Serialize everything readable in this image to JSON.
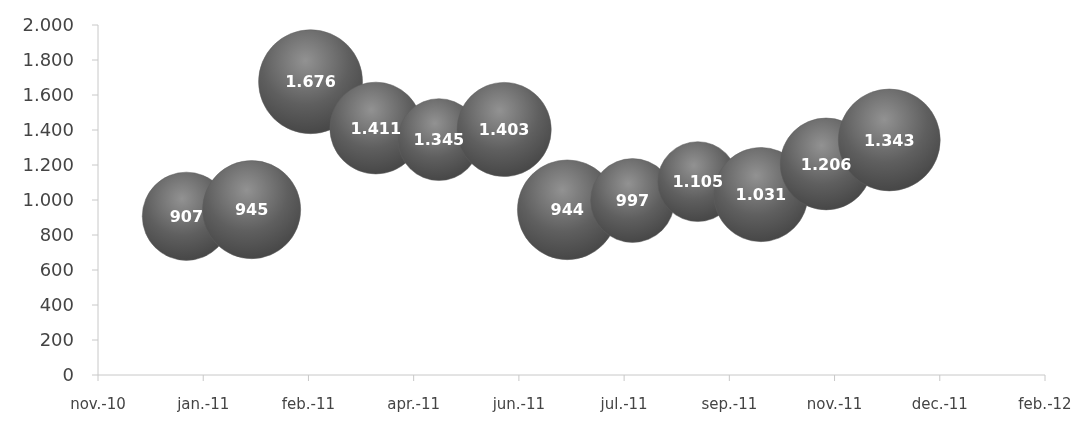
{
  "chart_data": {
    "type": "bubble",
    "x": [
      "2011-01-01",
      "2011-02-01",
      "2011-03-01",
      "2011-04-01",
      "2011-05-01",
      "2011-06-01",
      "2011-07-01",
      "2011-08-01",
      "2011-09-01",
      "2011-10-01",
      "2011-11-01",
      "2011-12-01"
    ],
    "series": [
      {
        "color": "#5f5f5f",
        "values": [
          907,
          945,
          1676,
          1411,
          1345,
          1403,
          944,
          997,
          1105,
          1031,
          1206,
          1343
        ],
        "sizes": [
          0.72,
          0.89,
          1,
          0.78,
          0.62,
          0.82,
          0.92,
          0.65,
          0.59,
          0.82,
          0.78,
          0.96
        ],
        "value_labels": [
          "907",
          "945",
          "1.676",
          "1.411",
          "1.345",
          "1.403",
          "944",
          "997",
          "1.105",
          "1.031",
          "1.206",
          "1.343"
        ]
      }
    ],
    "xlim": [
      "2010-11-20",
      "2012-02-13"
    ],
    "xticks": [
      {
        "value": "2010-11-20",
        "label": "nov.-10"
      },
      {
        "value": "2011-01-09",
        "label": "jan.-11"
      },
      {
        "value": "2011-02-28",
        "label": "feb.-11"
      },
      {
        "value": "2011-04-19",
        "label": "apr.-11"
      },
      {
        "value": "2011-06-08",
        "label": "jun.-11"
      },
      {
        "value": "2011-07-28",
        "label": "jul.-11"
      },
      {
        "value": "2011-09-16",
        "label": "sep.-11"
      },
      {
        "value": "2011-11-05",
        "label": "nov.-11"
      },
      {
        "value": "2011-12-25",
        "label": "dec.-11"
      },
      {
        "value": "2012-02-13",
        "label": "feb.-12"
      }
    ],
    "ylim": [
      0,
      2000
    ],
    "yticks": [
      {
        "value": 0,
        "label": "0"
      },
      {
        "value": 200,
        "label": "200"
      },
      {
        "value": 400,
        "label": "400"
      },
      {
        "value": 600,
        "label": "600"
      },
      {
        "value": 800,
        "label": "800"
      },
      {
        "value": 1000,
        "label": "1.000"
      },
      {
        "value": 1200,
        "label": "1.200"
      },
      {
        "value": 1400,
        "label": "1.400"
      },
      {
        "value": 1600,
        "label": "1.600"
      },
      {
        "value": 1800,
        "label": "1.800"
      },
      {
        "value": 2000,
        "label": "2.000"
      }
    ]
  }
}
